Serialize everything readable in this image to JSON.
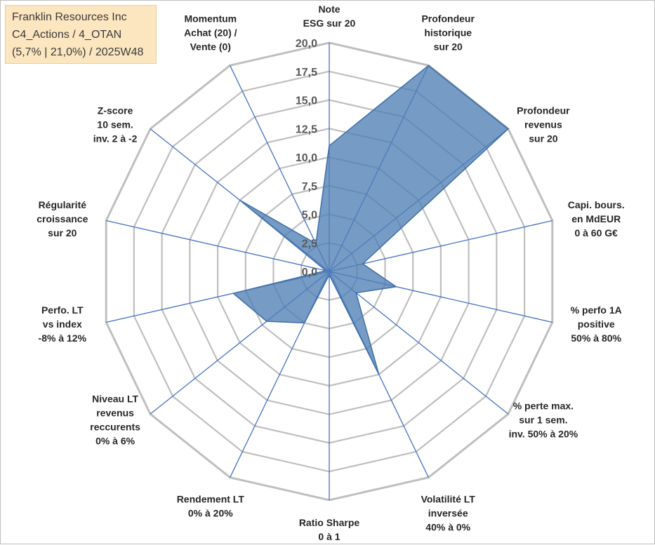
{
  "title_lines": [
    "Franklin Resources Inc",
    "C4_Actions / 4_OTAN",
    "(5,7% | 21,0%) / 2025W48"
  ],
  "chart_data": {
    "type": "radar",
    "axes": [
      {
        "lines": [
          "Note",
          "ESG sur 20"
        ]
      },
      {
        "lines": [
          "Profondeur",
          "historique",
          "sur 20"
        ]
      },
      {
        "lines": [
          "Profondeur",
          "revenus",
          "sur 20"
        ]
      },
      {
        "lines": [
          "Capi. bours.",
          "en MdEUR",
          "0 à 60 G€"
        ]
      },
      {
        "lines": [
          "% perfo 1A",
          "positive",
          "50% à 80%"
        ]
      },
      {
        "lines": [
          "% perte max.",
          "sur 1 sem.",
          "inv. 50% à 20%"
        ]
      },
      {
        "lines": [
          "Volatilité LT",
          "inversée",
          "40% à 0%"
        ]
      },
      {
        "lines": [
          "Ratio Sharpe",
          "0 à 1"
        ]
      },
      {
        "lines": [
          "Rendement LT",
          "0% à 20%"
        ]
      },
      {
        "lines": [
          "Niveau LT",
          "revenus",
          "reccurents",
          "0% à 6%"
        ]
      },
      {
        "lines": [
          "Perfo. LT",
          "vs index",
          "-8% à 12%"
        ]
      },
      {
        "lines": [
          "Régularité",
          "croissance",
          "sur 20"
        ]
      },
      {
        "lines": [
          "Z-score",
          "10 sem.",
          "inv. 2 à -2"
        ]
      },
      {
        "lines": [
          "Momentum",
          "Achat (20) /",
          "Vente (0)"
        ]
      }
    ],
    "values": [
      11.0,
      20.0,
      20.0,
      3.0,
      6.0,
      3.0,
      10.0,
      0.3,
      5.0,
      7.0,
      8.6,
      0.3,
      10.0,
      2.7
    ],
    "rlim": [
      0,
      20
    ],
    "ticks": [
      "0,0",
      "2,5",
      "5,0",
      "7,5",
      "10,0",
      "12,5",
      "15,0",
      "17,5",
      "20,0"
    ],
    "colors": {
      "fill": "#4f7fb5",
      "stroke": "#3d6fa8",
      "grid": "#bfbfbf",
      "axis": "#4472c4"
    }
  }
}
